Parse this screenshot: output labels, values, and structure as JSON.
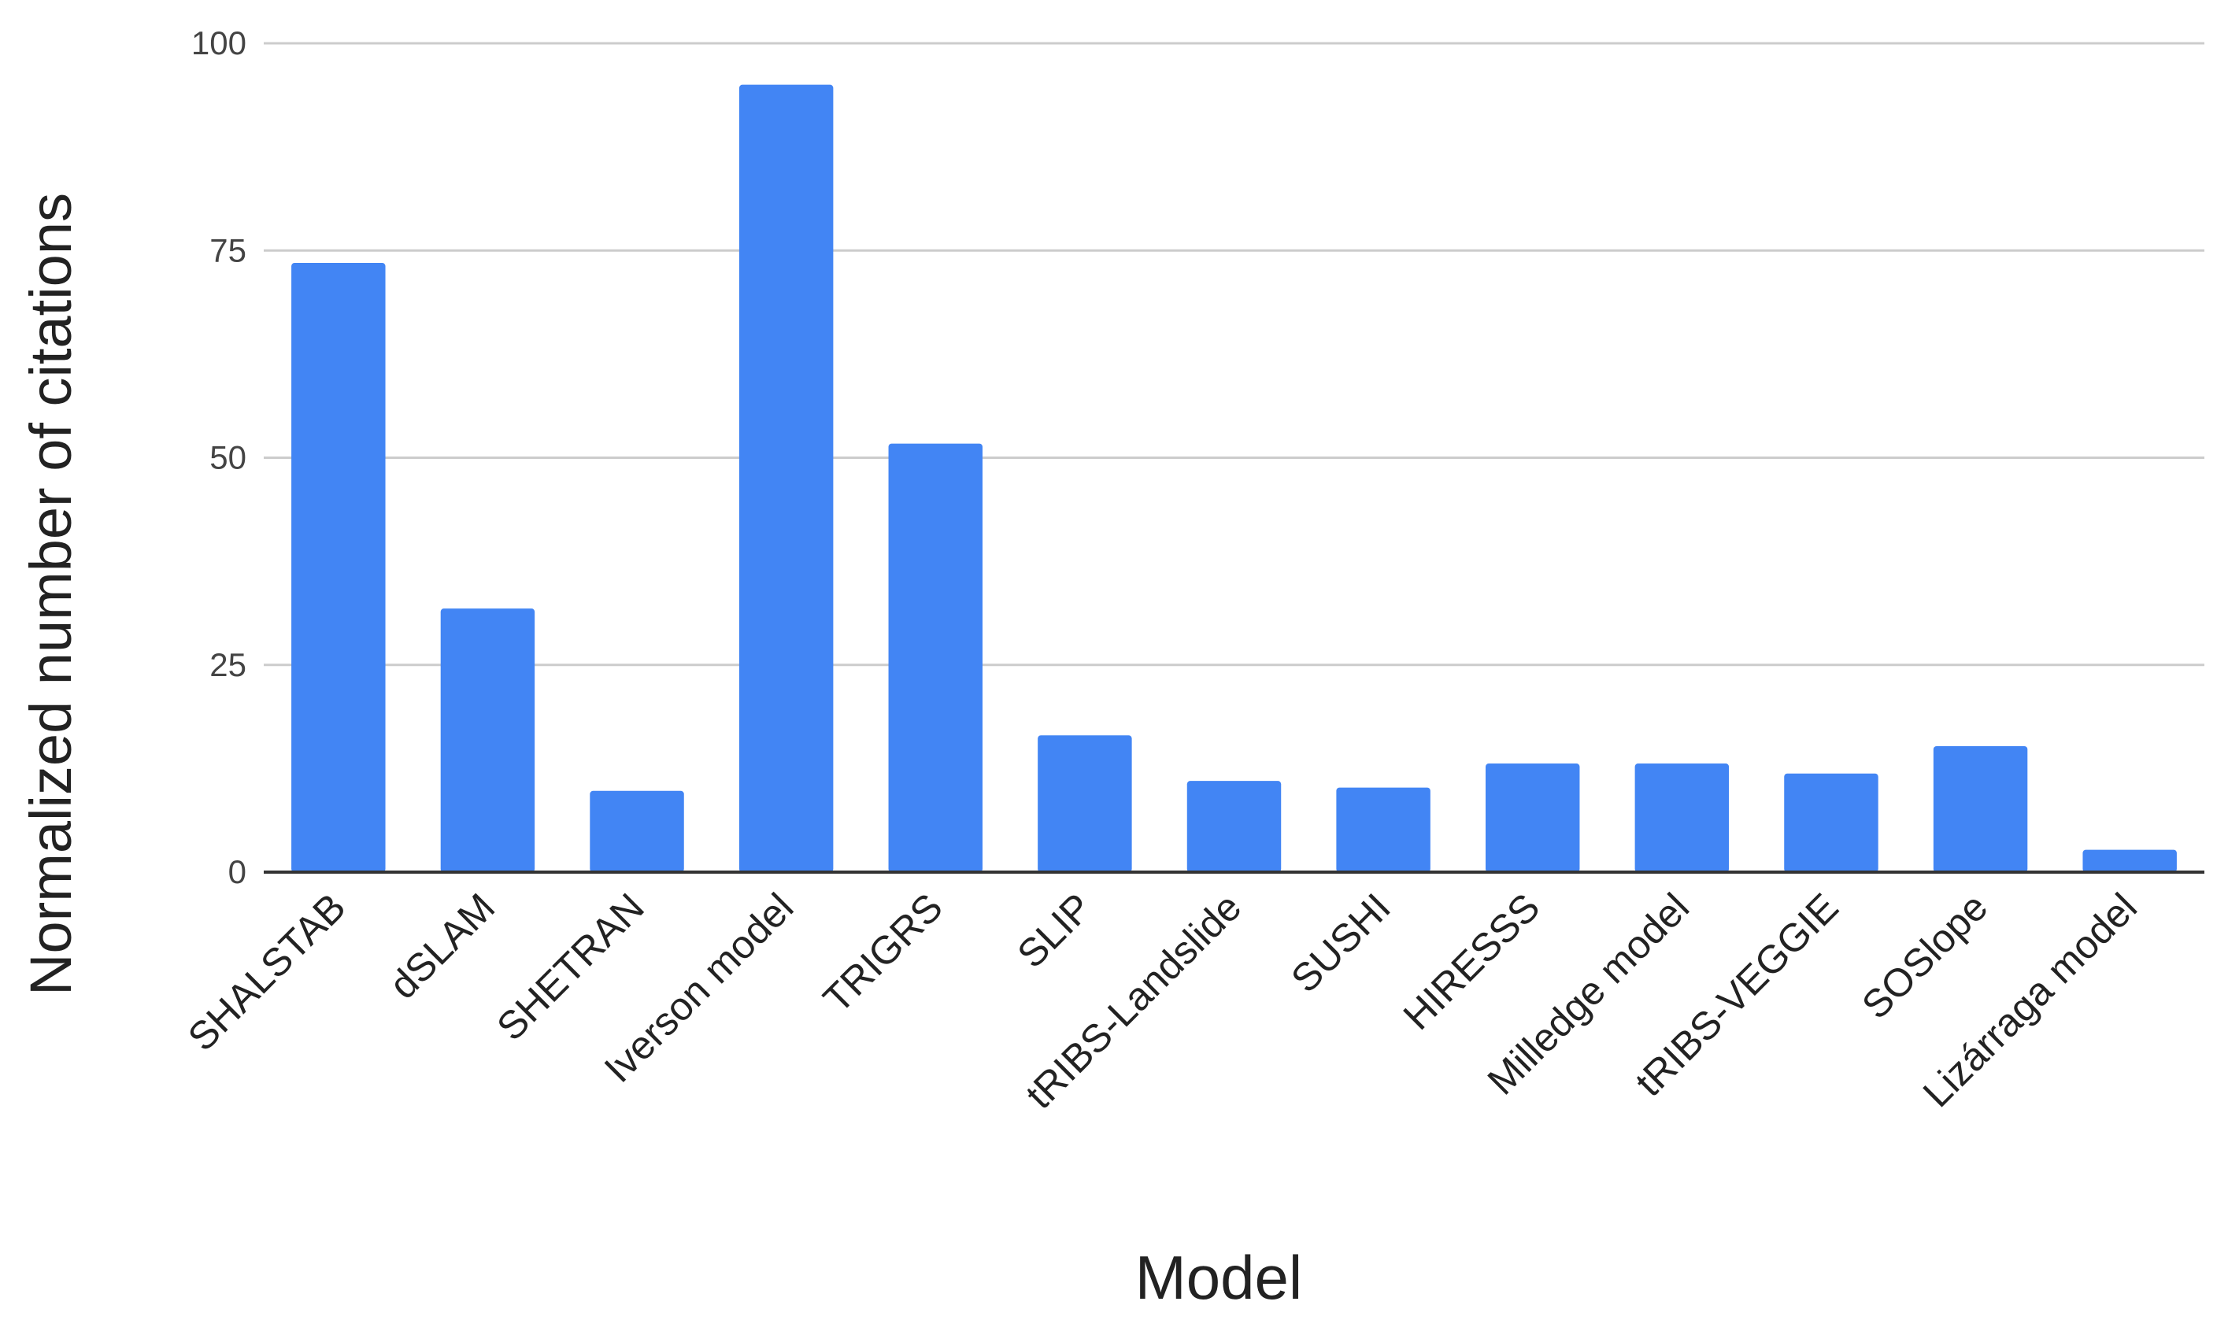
{
  "chart_data": {
    "type": "bar",
    "title": "",
    "xlabel": "Model",
    "ylabel": "Normalized number of citations",
    "ylim": [
      0,
      100
    ],
    "yticks": [
      0,
      25,
      50,
      75,
      100
    ],
    "grid": true,
    "legend": "none",
    "bar_color": "#4285F4",
    "grid_color": "#CCCCCC",
    "axis_color": "#333333",
    "categories": [
      "SHALSTAB",
      "dSLAM",
      "SHETRAN",
      "Iverson model",
      "TRIGRS",
      "SLIP",
      "tRIBS-Landslide",
      "SUSHI",
      "HIRESSS",
      "Milledge model",
      "tRIBS-VEGGIE",
      "SOSlope",
      "Lizárraga model"
    ],
    "values": [
      73.5,
      31.8,
      9.8,
      95.0,
      51.7,
      16.5,
      11.0,
      10.2,
      13.1,
      13.1,
      11.9,
      15.2,
      2.7
    ]
  }
}
